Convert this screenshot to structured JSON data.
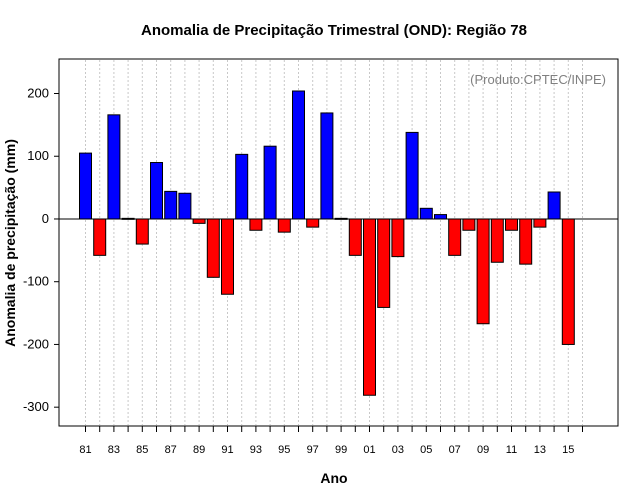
{
  "chart_data": {
    "type": "bar",
    "title": "Anomalia de Precipitação Trimestral (OND): Região 78",
    "xlabel": "Ano",
    "ylabel": "Anomalia de precipitação (mm)",
    "credit": "(Produto:CPTEC/INPE)",
    "ylim": [
      -330,
      255
    ],
    "yticks": [
      -300,
      -200,
      -100,
      0,
      100,
      200
    ],
    "grid": "vertical dotted",
    "colors": {
      "positive": "#0000ff",
      "negative": "#ff0000",
      "baseline": "#000000",
      "grid": "#c8c8c8"
    },
    "x_tick_labels": [
      "81",
      "83",
      "85",
      "87",
      "89",
      "91",
      "93",
      "95",
      "97",
      "99",
      "01",
      "03",
      "05",
      "07",
      "09",
      "11",
      "13",
      "15"
    ],
    "categories": [
      "1981",
      "1982",
      "1983",
      "1984",
      "1985",
      "1986",
      "1987",
      "1988",
      "1989",
      "1990",
      "1991",
      "1992",
      "1993",
      "1994",
      "1995",
      "1996",
      "1997",
      "1998",
      "1999",
      "2000",
      "2001",
      "2002",
      "2003",
      "2004",
      "2005",
      "2006",
      "2007",
      "2008",
      "2009",
      "2010",
      "2011",
      "2012",
      "2013",
      "2014",
      "2015"
    ],
    "values": [
      105,
      -58,
      166,
      1,
      -40,
      90,
      44,
      41,
      -7,
      -93,
      -120,
      103,
      -18,
      116,
      -21,
      204,
      -13,
      169,
      1,
      -58,
      -281,
      -141,
      -60,
      138,
      17,
      7,
      -58,
      -18,
      -167,
      -69,
      -18,
      -72,
      -13,
      43,
      -200
    ]
  }
}
